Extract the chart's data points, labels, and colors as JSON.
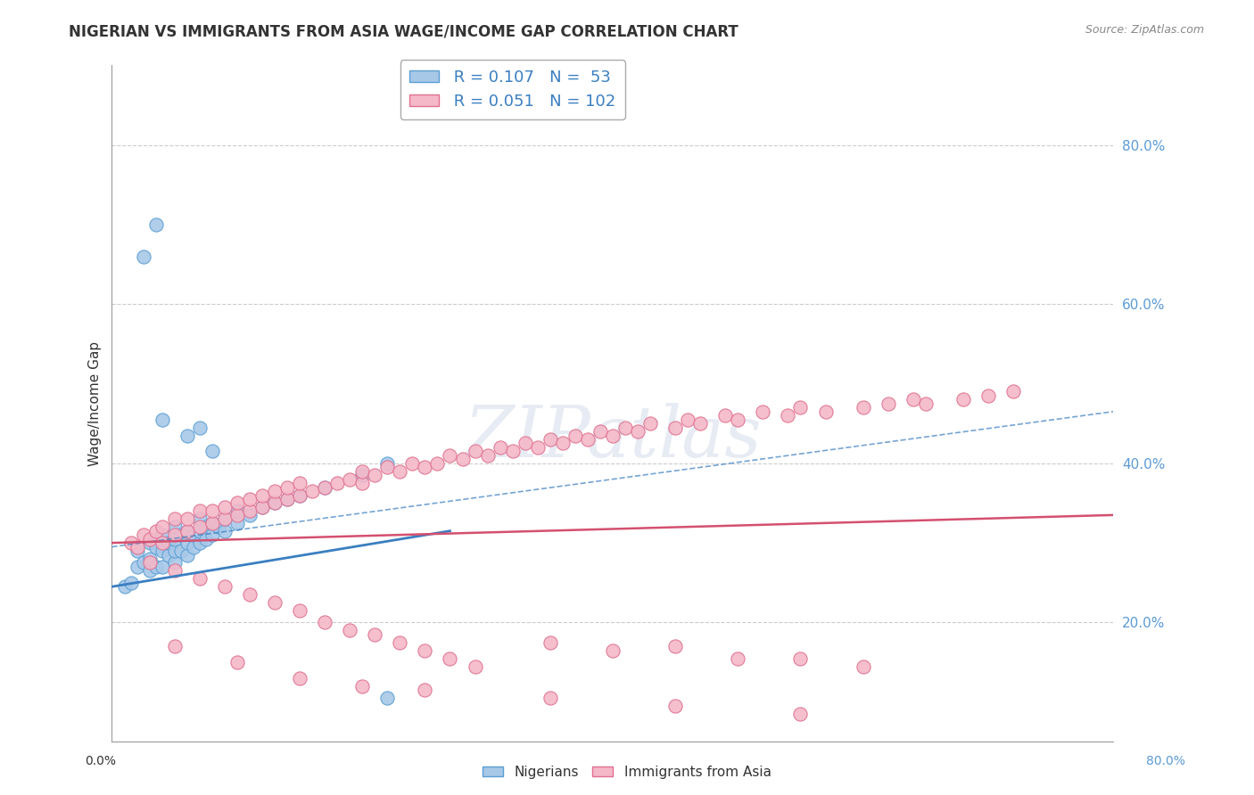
{
  "title": "NIGERIAN VS IMMIGRANTS FROM ASIA WAGE/INCOME GAP CORRELATION CHART",
  "source": "Source: ZipAtlas.com",
  "ylabel": "Wage/Income Gap",
  "legend1_label": "Nigerians",
  "legend2_label": "Immigrants from Asia",
  "r1": 0.107,
  "n1": 53,
  "r2": 0.051,
  "n2": 102,
  "blue_color": "#a8c8e8",
  "blue_edge_color": "#5a9fd4",
  "pink_color": "#f4b8c8",
  "pink_edge_color": "#e07090",
  "blue_line_color": "#3a7fc1",
  "pink_line_color": "#d45070",
  "legend_r_color": "#3a7fc1",
  "background_color": "#ffffff",
  "xlim": [
    0.0,
    0.8
  ],
  "ylim": [
    0.05,
    0.9
  ],
  "yticks": [
    0.2,
    0.4,
    0.6,
    0.8
  ],
  "ytick_labels": [
    "20.0%",
    "40.0%",
    "60.0%",
    "80.0%"
  ],
  "blue_x": [
    0.01,
    0.015,
    0.02,
    0.02,
    0.025,
    0.03,
    0.03,
    0.03,
    0.035,
    0.035,
    0.04,
    0.04,
    0.04,
    0.045,
    0.045,
    0.05,
    0.05,
    0.05,
    0.05,
    0.055,
    0.055,
    0.06,
    0.06,
    0.06,
    0.065,
    0.065,
    0.07,
    0.07,
    0.07,
    0.075,
    0.075,
    0.08,
    0.08,
    0.085,
    0.09,
    0.09,
    0.1,
    0.1,
    0.11,
    0.12,
    0.13,
    0.14,
    0.15,
    0.17,
    0.2,
    0.22,
    0.025,
    0.035,
    0.04,
    0.06,
    0.07,
    0.08,
    0.22
  ],
  "blue_y": [
    0.245,
    0.25,
    0.27,
    0.29,
    0.275,
    0.265,
    0.28,
    0.3,
    0.27,
    0.295,
    0.27,
    0.29,
    0.31,
    0.285,
    0.3,
    0.275,
    0.29,
    0.305,
    0.32,
    0.29,
    0.31,
    0.285,
    0.3,
    0.315,
    0.295,
    0.31,
    0.3,
    0.315,
    0.33,
    0.305,
    0.32,
    0.31,
    0.325,
    0.32,
    0.315,
    0.33,
    0.325,
    0.34,
    0.335,
    0.345,
    0.35,
    0.355,
    0.36,
    0.37,
    0.385,
    0.4,
    0.66,
    0.7,
    0.455,
    0.435,
    0.445,
    0.415,
    0.105
  ],
  "pink_x": [
    0.015,
    0.02,
    0.025,
    0.03,
    0.035,
    0.04,
    0.04,
    0.05,
    0.05,
    0.06,
    0.06,
    0.07,
    0.07,
    0.08,
    0.08,
    0.09,
    0.09,
    0.1,
    0.1,
    0.11,
    0.11,
    0.12,
    0.12,
    0.13,
    0.13,
    0.14,
    0.14,
    0.15,
    0.15,
    0.16,
    0.17,
    0.18,
    0.19,
    0.2,
    0.2,
    0.21,
    0.22,
    0.23,
    0.24,
    0.25,
    0.26,
    0.27,
    0.28,
    0.29,
    0.3,
    0.31,
    0.32,
    0.33,
    0.34,
    0.35,
    0.36,
    0.37,
    0.38,
    0.39,
    0.4,
    0.41,
    0.42,
    0.43,
    0.45,
    0.46,
    0.47,
    0.49,
    0.5,
    0.52,
    0.54,
    0.55,
    0.57,
    0.6,
    0.62,
    0.64,
    0.65,
    0.68,
    0.7,
    0.72,
    0.03,
    0.05,
    0.07,
    0.09,
    0.11,
    0.13,
    0.15,
    0.17,
    0.19,
    0.21,
    0.23,
    0.25,
    0.27,
    0.29,
    0.35,
    0.4,
    0.45,
    0.5,
    0.55,
    0.6,
    0.05,
    0.1,
    0.15,
    0.2,
    0.25,
    0.35,
    0.45,
    0.55
  ],
  "pink_y": [
    0.3,
    0.295,
    0.31,
    0.305,
    0.315,
    0.3,
    0.32,
    0.31,
    0.33,
    0.315,
    0.33,
    0.32,
    0.34,
    0.325,
    0.34,
    0.33,
    0.345,
    0.335,
    0.35,
    0.34,
    0.355,
    0.345,
    0.36,
    0.35,
    0.365,
    0.355,
    0.37,
    0.36,
    0.375,
    0.365,
    0.37,
    0.375,
    0.38,
    0.375,
    0.39,
    0.385,
    0.395,
    0.39,
    0.4,
    0.395,
    0.4,
    0.41,
    0.405,
    0.415,
    0.41,
    0.42,
    0.415,
    0.425,
    0.42,
    0.43,
    0.425,
    0.435,
    0.43,
    0.44,
    0.435,
    0.445,
    0.44,
    0.45,
    0.445,
    0.455,
    0.45,
    0.46,
    0.455,
    0.465,
    0.46,
    0.47,
    0.465,
    0.47,
    0.475,
    0.48,
    0.475,
    0.48,
    0.485,
    0.49,
    0.275,
    0.265,
    0.255,
    0.245,
    0.235,
    0.225,
    0.215,
    0.2,
    0.19,
    0.185,
    0.175,
    0.165,
    0.155,
    0.145,
    0.175,
    0.165,
    0.17,
    0.155,
    0.155,
    0.145,
    0.17,
    0.15,
    0.13,
    0.12,
    0.115,
    0.105,
    0.095,
    0.085
  ]
}
